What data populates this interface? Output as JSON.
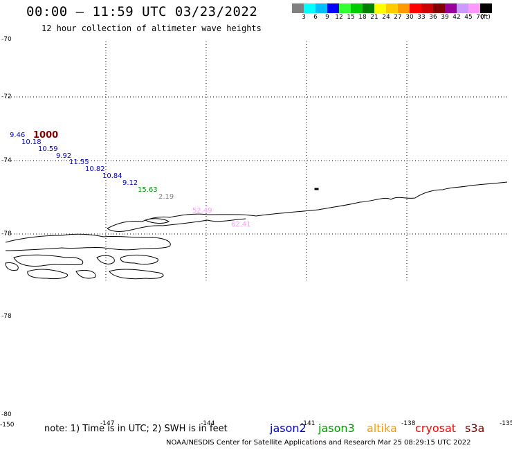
{
  "title": "00:00 – 11:59 UTC 03/23/2022",
  "subtitle": "12 hour collection of altimeter wave heights",
  "legend": {
    "colors": [
      "#808080",
      "#00ffff",
      "#00bfff",
      "#0000ff",
      "#33ff33",
      "#00cc00",
      "#008000",
      "#ffff00",
      "#ffcc00",
      "#ff9900",
      "#ff0000",
      "#cc0000",
      "#800000",
      "#990099",
      "#cc99ff",
      "#ff99ff",
      "#000000"
    ],
    "labels": [
      "3",
      "6",
      "9",
      "12",
      "15",
      "18",
      "21",
      "24",
      "27",
      "30",
      "33",
      "36",
      "39",
      "42",
      "45",
      "70",
      "(ft)"
    ]
  },
  "lat_labels": [
    "-70",
    "-72",
    "-74",
    "-78",
    "-78",
    "-80"
  ],
  "lon_labels": [
    "-150",
    "-147",
    "-144",
    "-141",
    "-138",
    "-135"
  ],
  "swh_readings": [
    {
      "value": "9.46",
      "color": "#0000cc"
    },
    {
      "value": "1000",
      "color": "#800000"
    },
    {
      "value": "10.18",
      "color": "#0000cc"
    },
    {
      "value": "10.59",
      "color": "#0000cc"
    },
    {
      "value": "9.92",
      "color": "#0000cc"
    },
    {
      "value": "11.55",
      "color": "#0000cc"
    },
    {
      "value": "10.82",
      "color": "#0000cc"
    },
    {
      "value": "10.84",
      "color": "#0000cc"
    },
    {
      "value": "9.12",
      "color": "#0000cc"
    },
    {
      "value": "15.63",
      "color": "#009900"
    },
    {
      "value": "2.19",
      "color": "#808080"
    },
    {
      "value": "52.49",
      "color": "#ff99ff"
    },
    {
      "value": "62.41",
      "color": "#ff99ff"
    }
  ],
  "note": "note: 1) Time is in UTC; 2) SWH is in feet",
  "satellites": [
    {
      "name": "jason2",
      "color": "#0000cc"
    },
    {
      "name": "jason3",
      "color": "#009900"
    },
    {
      "name": "altika",
      "color": "#ff9900"
    },
    {
      "name": "cryosat",
      "color": "#ff0000"
    },
    {
      "name": "s3a",
      "color": "#800000"
    }
  ],
  "footer": "NOAA/NESDIS Center for Satellite Applications and Research   Mar 25 08:29:15 UTC 2022"
}
